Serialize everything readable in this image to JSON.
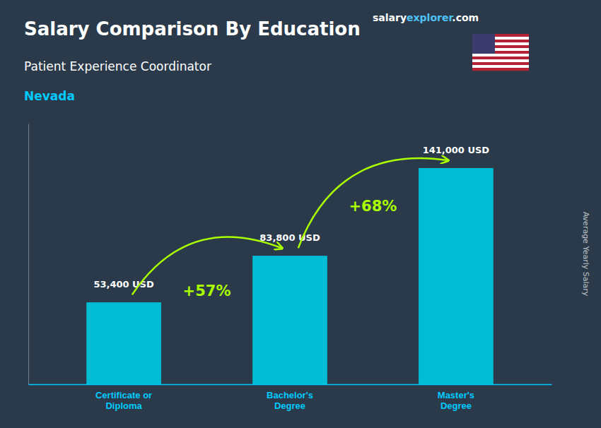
{
  "chart_data": {
    "type": "bar",
    "title": "Salary Comparison By Education",
    "subtitle": "Patient Experience Coordinator",
    "location": "Nevada",
    "watermark": [
      "salary",
      "explorer",
      ".com"
    ],
    "ylabel": "Average Yearly Salary",
    "categories": [
      "Certificate or\nDiploma",
      "Bachelor's\nDegree",
      "Master's\nDegree"
    ],
    "values": [
      53400,
      83800,
      141000
    ],
    "value_labels": [
      "53,400 USD",
      "83,800 USD",
      "141,000 USD"
    ],
    "data_labels": true,
    "color": "#00bcd4",
    "ylim": [
      0,
      170000
    ],
    "tick_labels": "x",
    "grid": false,
    "annotations": [
      "+57%",
      "+68%"
    ]
  }
}
